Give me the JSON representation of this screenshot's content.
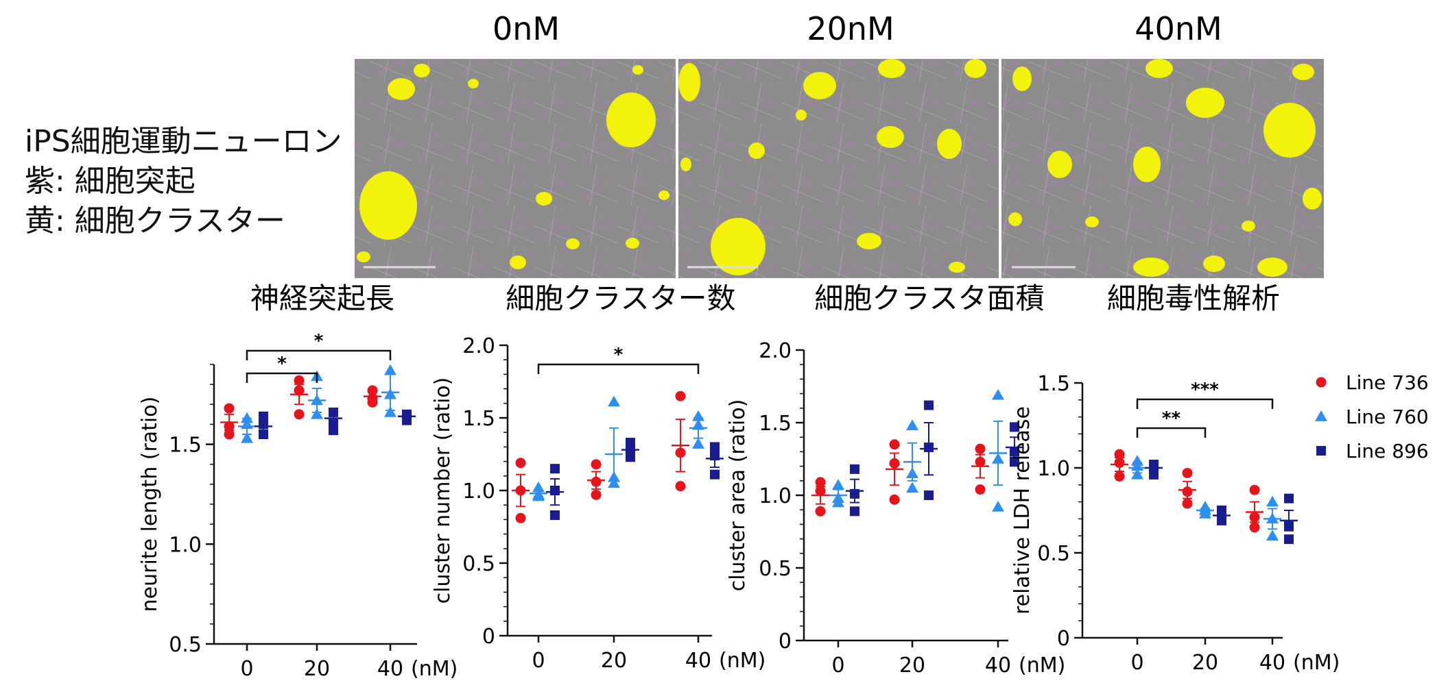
{
  "figure": {
    "condition_headers": [
      "0nM",
      "20nM",
      "40nM"
    ],
    "legend_lines": [
      "iPS細胞運動ニューロン",
      "紫: 細胞突起",
      "黄: 細胞クラスター"
    ],
    "legend_entries": [
      {
        "name": "Line 736",
        "color": "#e8141c",
        "marker": "circle"
      },
      {
        "name": "Line 760",
        "color": "#2f8ff0",
        "marker": "triangle"
      },
      {
        "name": "Line 896",
        "color": "#1a1d8f",
        "marker": "square"
      }
    ],
    "image_colors": {
      "background": "#8c8c8c",
      "neurites": "#b27ab8",
      "clusters": "#f2f20a"
    }
  },
  "chart_data": [
    {
      "type": "scatter",
      "panel_title": "神経突起長",
      "ylabel": "neurite length (ratio)",
      "x_ticks": [
        "0",
        "20",
        "40"
      ],
      "x_unit": "(nM)",
      "ylim": [
        0.5,
        1.9
      ],
      "y_ticks": [
        "0.5",
        "1.0",
        "1.5"
      ],
      "series": [
        {
          "name": "Line 736",
          "points": [
            [
              1.55,
              1.59,
              1.68
            ],
            [
              1.65,
              1.77,
              1.82
            ],
            [
              1.71,
              1.73,
              1.77
            ]
          ],
          "mean": [
            1.61,
            1.75,
            1.74
          ],
          "sem": [
            0.04,
            0.05,
            0.02
          ]
        },
        {
          "name": "Line 760",
          "points": [
            [
              1.53,
              1.6,
              1.63
            ],
            [
              1.65,
              1.72,
              1.84
            ],
            [
              1.66,
              1.75,
              1.87
            ]
          ],
          "mean": [
            1.59,
            1.72,
            1.76
          ],
          "sem": [
            0.04,
            0.06,
            0.09
          ]
        },
        {
          "name": "Line 896",
          "points": [
            [
              1.55,
              1.6,
              1.64
            ],
            [
              1.57,
              1.61,
              1.66
            ],
            [
              1.62,
              1.63,
              1.65
            ]
          ],
          "mean": [
            1.59,
            1.63,
            1.64
          ],
          "sem": [
            0.03,
            0.03,
            0.01
          ]
        }
      ],
      "brackets": [
        {
          "from": 0,
          "to": 40,
          "label": "*"
        },
        {
          "from": 0,
          "to": 20,
          "label": "*"
        }
      ]
    },
    {
      "type": "scatter",
      "panel_title": "細胞クラスター数",
      "ylabel": "cluster number (ratio)",
      "x_ticks": [
        "0",
        "20",
        "40"
      ],
      "x_unit": "(nM)",
      "ylim": [
        0,
        2.0
      ],
      "y_ticks": [
        "0",
        "0.5",
        "1.0",
        "1.5",
        "2.0"
      ],
      "series": [
        {
          "name": "Line 736",
          "points": [
            [
              0.81,
              1.0,
              1.19
            ],
            [
              0.97,
              1.06,
              1.18
            ],
            [
              1.03,
              1.26,
              1.65
            ]
          ],
          "mean": [
            1.0,
            1.07,
            1.31
          ],
          "sem": [
            0.11,
            0.06,
            0.18
          ]
        },
        {
          "name": "Line 760",
          "points": [
            [
              0.96,
              0.97,
              1.02
            ],
            [
              1.05,
              1.09,
              1.61
            ],
            [
              1.32,
              1.45,
              1.51
            ]
          ],
          "mean": [
            0.98,
            1.25,
            1.43
          ],
          "sem": [
            0.02,
            0.18,
            0.07
          ]
        },
        {
          "name": "Line 896",
          "points": [
            [
              0.83,
              1.0,
              1.15
            ],
            [
              1.23,
              1.28,
              1.33
            ],
            [
              1.11,
              1.24,
              1.3
            ]
          ],
          "mean": [
            0.99,
            1.28,
            1.22
          ],
          "sem": [
            0.09,
            0.03,
            0.06
          ]
        }
      ],
      "brackets": [
        {
          "from": 0,
          "to": 40,
          "label": "*"
        }
      ]
    },
    {
      "type": "scatter",
      "panel_title": "細胞クラスタ面積",
      "ylabel": "cluster area (ratio)",
      "x_ticks": [
        "0",
        "20",
        "40"
      ],
      "x_unit": "(nM)",
      "ylim": [
        0,
        2.0
      ],
      "y_ticks": [
        "0",
        "0.5",
        "1.0",
        "1.5",
        "2.0"
      ],
      "series": [
        {
          "name": "Line 736",
          "points": [
            [
              0.89,
              1.03,
              1.09
            ],
            [
              0.97,
              1.22,
              1.35
            ],
            [
              1.04,
              1.23,
              1.32
            ]
          ],
          "mean": [
            1.0,
            1.18,
            1.2
          ],
          "sem": [
            0.06,
            0.11,
            0.08
          ]
        },
        {
          "name": "Line 760",
          "points": [
            [
              0.95,
              0.98,
              1.07
            ],
            [
              1.05,
              1.15,
              1.48
            ],
            [
              0.92,
              1.25,
              1.69
            ]
          ],
          "mean": [
            1.0,
            1.23,
            1.29
          ],
          "sem": [
            0.04,
            0.13,
            0.22
          ]
        },
        {
          "name": "Line 896",
          "points": [
            [
              0.89,
              1.01,
              1.18
            ],
            [
              1.0,
              1.33,
              1.62
            ],
            [
              1.23,
              1.3,
              1.47
            ]
          ],
          "mean": [
            1.03,
            1.32,
            1.33
          ],
          "sem": [
            0.08,
            0.18,
            0.07
          ]
        }
      ]
    },
    {
      "type": "scatter",
      "panel_title": "細胞毒性解析",
      "ylabel": "relative LDH release",
      "x_ticks": [
        "0",
        "20",
        "40"
      ],
      "x_unit": "(nM)",
      "ylim": [
        0,
        1.5
      ],
      "y_ticks": [
        "0",
        "0.5",
        "1.0",
        "1.5"
      ],
      "series": [
        {
          "name": "Line 736",
          "points": [
            [
              0.95,
              1.03,
              1.08
            ],
            [
              0.79,
              0.86,
              0.97
            ],
            [
              0.65,
              0.71,
              0.87
            ]
          ],
          "mean": [
            1.02,
            0.87,
            0.74
          ],
          "sem": [
            0.04,
            0.05,
            0.06
          ]
        },
        {
          "name": "Line 760",
          "points": [
            [
              0.96,
              1.01,
              1.04
            ],
            [
              0.73,
              0.75,
              0.77
            ],
            [
              0.6,
              0.7,
              0.8
            ]
          ],
          "mean": [
            1.0,
            0.75,
            0.7
          ],
          "sem": [
            0.03,
            0.01,
            0.06
          ]
        },
        {
          "name": "Line 896",
          "points": [
            [
              0.96,
              1.01,
              1.02
            ],
            [
              0.69,
              0.72,
              0.75
            ],
            [
              0.58,
              0.66,
              0.82
            ]
          ],
          "mean": [
            1.0,
            0.72,
            0.69
          ],
          "sem": [
            0.02,
            0.02,
            0.06
          ]
        }
      ],
      "brackets": [
        {
          "from": 0,
          "to": 40,
          "label": "***"
        },
        {
          "from": 0,
          "to": 20,
          "label": "**"
        }
      ]
    }
  ]
}
